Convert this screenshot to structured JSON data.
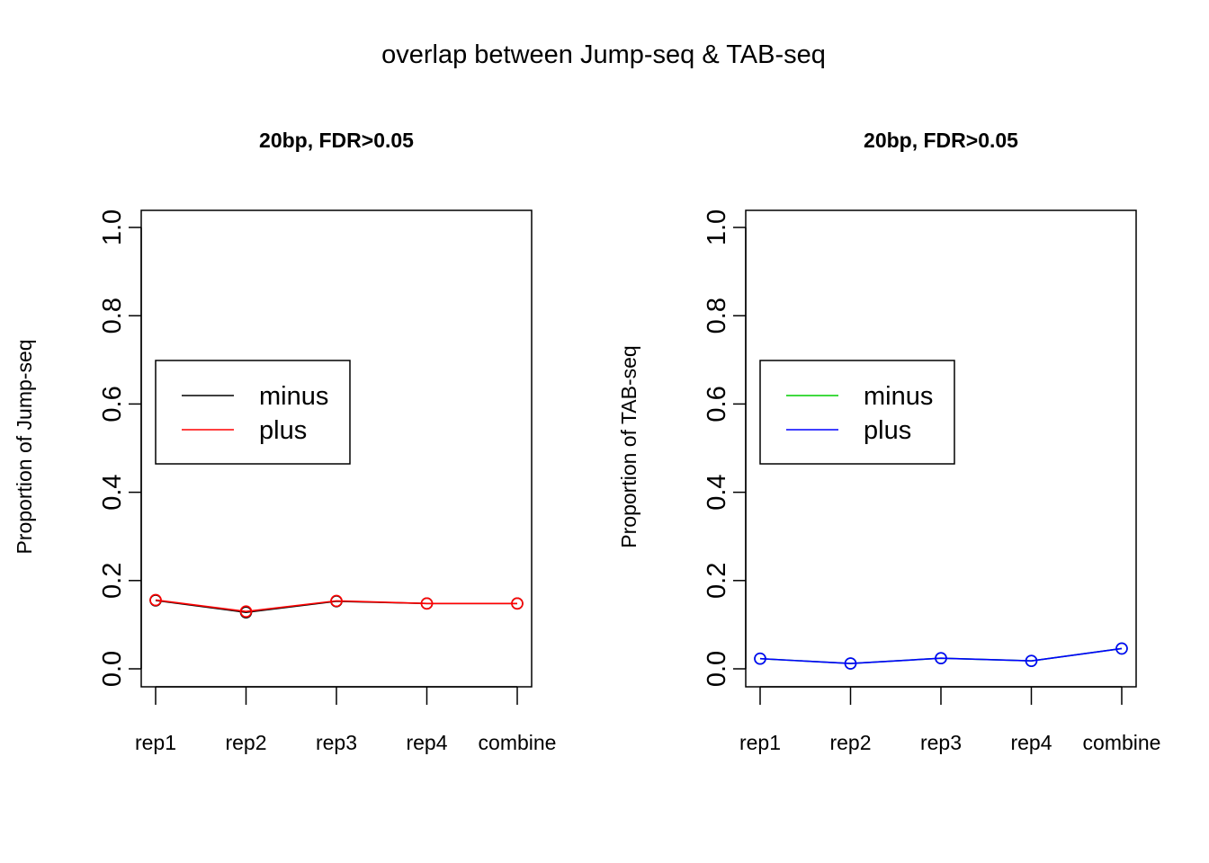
{
  "figure": {
    "title": "overlap between Jump-seq & TAB-seq"
  },
  "chart_data": [
    {
      "type": "line",
      "title": "20bp, FDR>0.05",
      "xlabel": "",
      "ylabel": "Proportion of Jump-seq",
      "categories": [
        "rep1",
        "rep2",
        "rep3",
        "rep4",
        "combine"
      ],
      "ylim": [
        0,
        1
      ],
      "yticks": [
        "0.0",
        "0.2",
        "0.4",
        "0.6",
        "0.8",
        "1.0"
      ],
      "grid": false,
      "legend_position": "middle-left",
      "markers": "open-circle",
      "series": [
        {
          "name": "minus",
          "color": "#000000",
          "values": [
            0.155,
            0.128,
            0.153,
            0.148,
            0.148
          ]
        },
        {
          "name": "plus",
          "color": "#ff0000",
          "values": [
            0.156,
            0.13,
            0.154,
            0.148,
            0.148
          ]
        }
      ]
    },
    {
      "type": "line",
      "title": "20bp, FDR>0.05",
      "xlabel": "",
      "ylabel": "Proportion of TAB-seq",
      "categories": [
        "rep1",
        "rep2",
        "rep3",
        "rep4",
        "combine"
      ],
      "ylim": [
        0,
        1
      ],
      "yticks": [
        "0.0",
        "0.2",
        "0.4",
        "0.6",
        "0.8",
        "1.0"
      ],
      "grid": false,
      "legend_position": "middle-left",
      "markers": "open-circle",
      "series": [
        {
          "name": "minus",
          "color": "#00cd00",
          "values": [
            0.023,
            0.012,
            0.024,
            0.018,
            0.046
          ]
        },
        {
          "name": "plus",
          "color": "#0000ff",
          "values": [
            0.023,
            0.012,
            0.024,
            0.018,
            0.046
          ]
        }
      ]
    }
  ]
}
